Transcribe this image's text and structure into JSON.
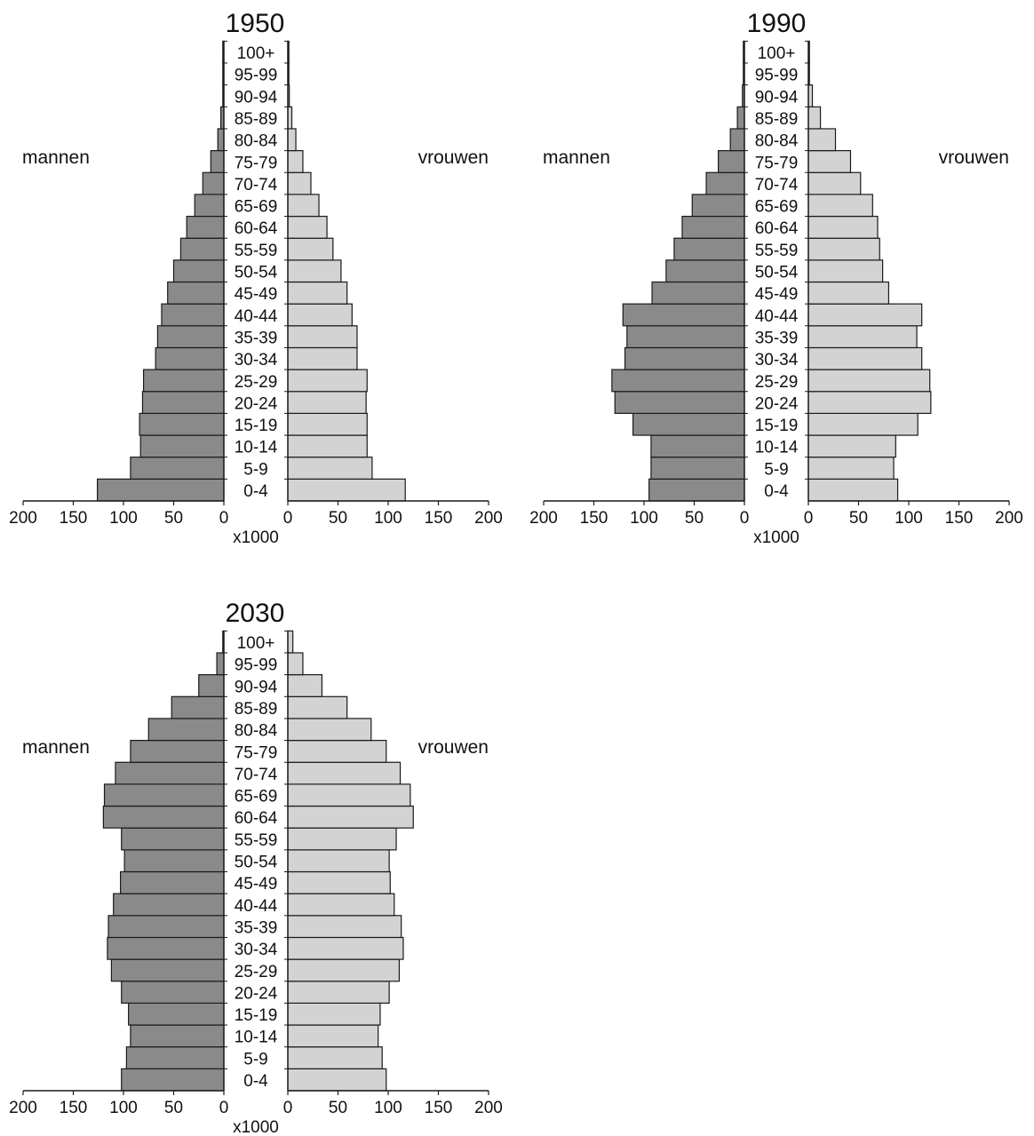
{
  "colors": {
    "male": "#8a8a8a",
    "female": "#d3d3d3",
    "stroke": "#1a1a1a"
  },
  "age_groups": [
    "0-4",
    "5-9",
    "10-14",
    "15-19",
    "20-24",
    "25-29",
    "30-34",
    "35-39",
    "40-44",
    "45-49",
    "50-54",
    "55-59",
    "60-64",
    "65-69",
    "70-74",
    "75-79",
    "80-84",
    "85-89",
    "90-94",
    "95-99",
    "100+"
  ],
  "ticks": [
    "200",
    "150",
    "100",
    "50",
    "0"
  ],
  "unit_label": "x1000",
  "male_label": "mannen",
  "female_label": "vrouwen",
  "chart_data": [
    {
      "type": "bar",
      "title": "1950",
      "xlabel": "x1000",
      "xlim": [
        0,
        200
      ],
      "categories": [
        "0-4",
        "5-9",
        "10-14",
        "15-19",
        "20-24",
        "25-29",
        "30-34",
        "35-39",
        "40-44",
        "45-49",
        "50-54",
        "55-59",
        "60-64",
        "65-69",
        "70-74",
        "75-79",
        "80-84",
        "85-89",
        "90-94",
        "95-99",
        "100+"
      ],
      "series": [
        {
          "name": "mannen",
          "values": [
            126,
            93,
            83,
            84,
            81,
            80,
            68,
            66,
            62,
            56,
            50,
            43,
            37,
            29,
            21,
            13,
            6,
            3,
            1,
            0.5,
            0.2
          ]
        },
        {
          "name": "vrouwen",
          "values": [
            117,
            84,
            79,
            79,
            78,
            79,
            69,
            69,
            64,
            59,
            53,
            45,
            39,
            31,
            23,
            15,
            8,
            4,
            1.5,
            0.5,
            0.2
          ]
        }
      ]
    },
    {
      "type": "bar",
      "title": "1990",
      "xlabel": "x1000",
      "xlim": [
        0,
        200
      ],
      "categories": [
        "0-4",
        "5-9",
        "10-14",
        "15-19",
        "20-24",
        "25-29",
        "30-34",
        "35-39",
        "40-44",
        "45-49",
        "50-54",
        "55-59",
        "60-64",
        "65-69",
        "70-74",
        "75-79",
        "80-84",
        "85-89",
        "90-94",
        "95-99",
        "100+"
      ],
      "series": [
        {
          "name": "mannen",
          "values": [
            95,
            93,
            93,
            111,
            129,
            132,
            119,
            117,
            121,
            92,
            78,
            70,
            62,
            52,
            38,
            26,
            14,
            7,
            2,
            0.5,
            0.2
          ]
        },
        {
          "name": "vrouwen",
          "values": [
            89,
            85,
            87,
            109,
            122,
            121,
            113,
            108,
            113,
            80,
            74,
            71,
            69,
            64,
            52,
            42,
            27,
            12,
            4,
            1,
            0.2
          ]
        }
      ]
    },
    {
      "type": "bar",
      "title": "2030",
      "xlabel": "x1000",
      "xlim": [
        0,
        200
      ],
      "categories": [
        "0-4",
        "5-9",
        "10-14",
        "15-19",
        "20-24",
        "25-29",
        "30-34",
        "35-39",
        "40-44",
        "45-49",
        "50-54",
        "55-59",
        "60-64",
        "65-69",
        "70-74",
        "75-79",
        "80-84",
        "85-89",
        "90-94",
        "95-99",
        "100+"
      ],
      "series": [
        {
          "name": "mannen",
          "values": [
            102,
            97,
            93,
            95,
            102,
            112,
            116,
            115,
            110,
            103,
            99,
            102,
            120,
            119,
            108,
            93,
            75,
            52,
            25,
            7,
            1
          ]
        },
        {
          "name": "vrouwen",
          "values": [
            98,
            94,
            90,
            92,
            101,
            111,
            115,
            113,
            106,
            102,
            101,
            108,
            125,
            122,
            112,
            98,
            83,
            59,
            34,
            15,
            5
          ]
        }
      ]
    }
  ]
}
